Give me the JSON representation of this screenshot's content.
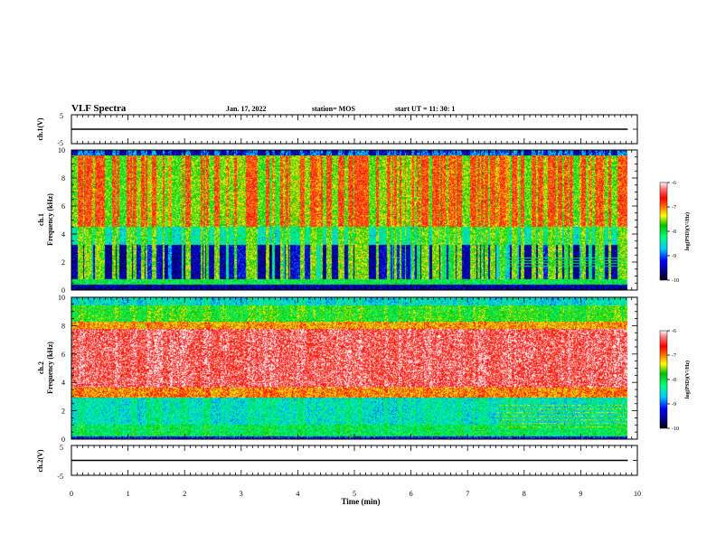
{
  "header": {
    "title": "VLF Spectra",
    "date": "Jan. 17, 2022",
    "station": "station= MOS",
    "start": "start  UT =   11: 30: 1"
  },
  "chart_data": [
    {
      "type": "line",
      "panel": "ch1-voltage",
      "ylabel": "ch.1(V)",
      "ylim": [
        -5,
        5
      ],
      "y_ticks": [
        "5",
        "-5"
      ],
      "x_range": [
        0,
        9.83
      ],
      "baseline": 0,
      "color": "#000000"
    },
    {
      "type": "heatmap",
      "panel": "ch1-spectrogram",
      "ylabel": "ch.1 Frequency (kHz)",
      "ylim": [
        0,
        10
      ],
      "y_ticks": [
        "0",
        "2",
        "4",
        "6",
        "8",
        "10"
      ],
      "x_range": [
        0,
        9.83
      ],
      "colorbar": {
        "label": "log(PSD)(V²/Hz)",
        "min": -10,
        "max": -6,
        "ticks": [
          "-6",
          "-7",
          "-8",
          "-9",
          "-10"
        ]
      }
    },
    {
      "type": "heatmap",
      "panel": "ch2-spectrogram",
      "ylabel": "ch.2 Frequency (kHz)",
      "ylim": [
        0,
        10
      ],
      "y_ticks": [
        "0",
        "2",
        "4",
        "6",
        "8",
        "10"
      ],
      "x_range": [
        0,
        9.83
      ],
      "colorbar": {
        "label": "log(PSD)(V²/Hz)",
        "min": -10,
        "max": -6,
        "ticks": [
          "-6",
          "-7",
          "-8",
          "-9",
          "-10"
        ]
      }
    },
    {
      "type": "line",
      "panel": "ch2-voltage",
      "ylabel": "ch.2(V)",
      "ylim": [
        -5,
        5
      ],
      "y_ticks": [
        "5",
        "-5"
      ],
      "x_range": [
        0,
        9.83
      ],
      "baseline": 0,
      "color": "#000000"
    }
  ],
  "x_axis": {
    "label": "Time  (min)",
    "min": 0,
    "max": 10,
    "ticks": [
      "0",
      "1",
      "2",
      "3",
      "4",
      "5",
      "6",
      "7",
      "8",
      "9",
      "10"
    ]
  },
  "labels": {
    "ch1_top": "ch.1",
    "freq": "Frequency (kHz)",
    "ch2_top": "ch.2",
    "cb_label": "log(PSD)(V²/Hz)"
  }
}
